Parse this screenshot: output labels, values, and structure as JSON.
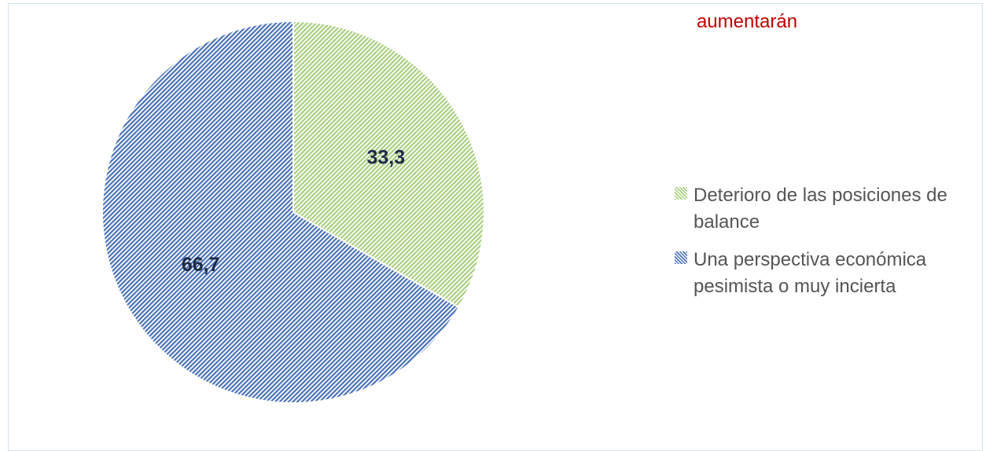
{
  "chart_data": {
    "type": "pie",
    "title": "aumentarán",
    "categories": [
      "Deterioro de las posiciones de balance",
      "Una perspectiva económica pesimista o muy incierta"
    ],
    "values": [
      33.3,
      66.7
    ],
    "value_labels": [
      "33,3",
      "66,7"
    ],
    "colors": [
      "#a9cf7f",
      "#4a72b8"
    ],
    "legend": "right"
  }
}
